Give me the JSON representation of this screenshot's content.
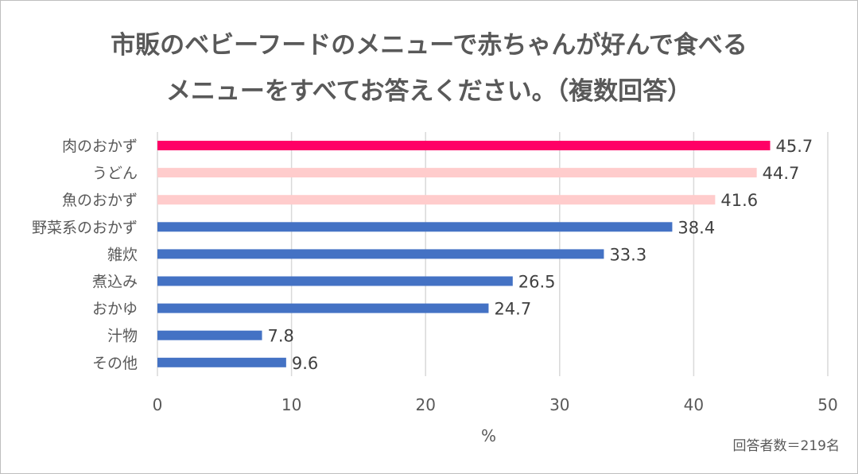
{
  "chart_data": {
    "type": "bar",
    "orientation": "horizontal",
    "title_lines": [
      "市販のベビーフードのメニューで赤ちゃんが好んで食べる",
      "メニューをすべてお答えください。（複数回答）"
    ],
    "categories": [
      "肉のおかず",
      "うどん",
      "魚のおかず",
      "野菜系のおかず",
      "雑炊",
      "煮込み",
      "おかゆ",
      "汁物",
      "その他"
    ],
    "values": [
      45.7,
      44.7,
      41.6,
      38.4,
      33.3,
      26.5,
      24.7,
      7.8,
      9.6
    ],
    "bar_colors": [
      "#FF0066",
      "#FFCCCC",
      "#FFCCCC",
      "#4472C4",
      "#4472C4",
      "#4472C4",
      "#4472C4",
      "#4472C4",
      "#4472C4"
    ],
    "xlabel": "%",
    "xlim": [
      0,
      50
    ],
    "xticks": [
      "0",
      "10",
      "20",
      "30",
      "40",
      "50"
    ],
    "grid": true,
    "note": "回答者数＝219名"
  }
}
